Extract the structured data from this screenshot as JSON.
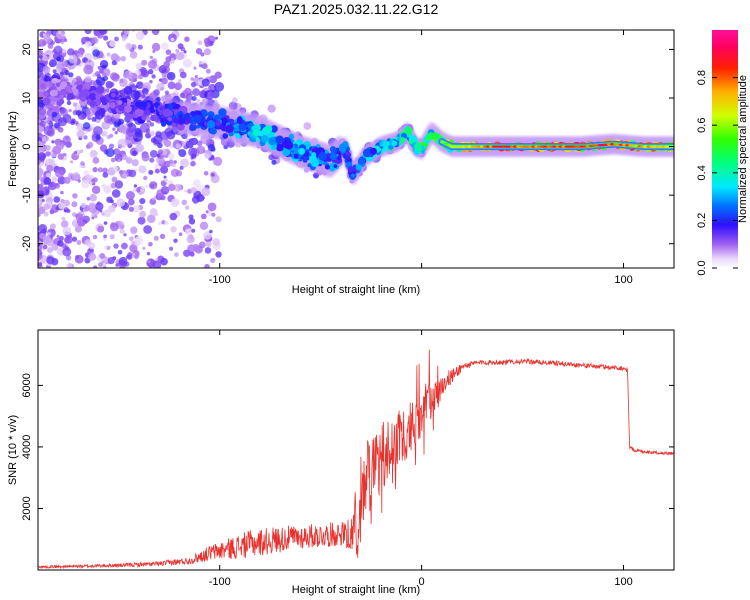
{
  "figure_title": "PAZ1.2025.032.11.22.G12",
  "chart_data": [
    {
      "type": "heatmap",
      "xlabel": "Height of straight line (km)",
      "ylabel": "Frequency (Hz)",
      "xlim": [
        -190,
        125
      ],
      "ylim": [
        -25,
        24
      ],
      "xticks": [
        -100,
        0,
        100
      ],
      "xtick_labels": [
        "-100",
        "",
        "100"
      ],
      "yticks": [
        -20,
        -10,
        0,
        10,
        20
      ],
      "ytick_labels": [
        "-20",
        "-10",
        "0",
        "10",
        "20"
      ],
      "colorbar": {
        "label": "Normalized spectral amplitude",
        "range": [
          0,
          1
        ],
        "ticks": [
          0.0,
          0.2,
          0.4,
          0.6,
          0.8
        ],
        "tick_labels": [
          "0.0",
          "0.2",
          "0.4",
          "0.6",
          "0.8"
        ],
        "colormap": "rainbow (magenta-purple-blue-cyan-green-yellow-red-pink)"
      },
      "ridge": {
        "x": [
          -190,
          -150,
          -120,
          -100,
          -80,
          -60,
          -45,
          -38,
          -34,
          -28,
          -20,
          -12,
          -7,
          -3,
          0,
          5,
          10,
          15,
          20,
          40,
          60,
          80,
          95,
          110,
          125
        ],
        "y": [
          12,
          9,
          6,
          5,
          3,
          -1,
          -3,
          0,
          -6,
          -2,
          0,
          1,
          3,
          0,
          -0.5,
          3,
          1,
          0,
          0,
          0,
          0,
          0,
          0.5,
          0,
          0
        ],
        "amplitude": [
          0.1,
          0.15,
          0.2,
          0.25,
          0.35,
          0.3,
          0.3,
          0.25,
          0.25,
          0.3,
          0.35,
          0.4,
          0.4,
          0.45,
          0.45,
          0.5,
          0.55,
          0.6,
          0.7,
          0.9,
          0.85,
          0.85,
          0.9,
          0.75,
          0.7
        ]
      }
    },
    {
      "type": "line",
      "xlabel": "Height of straight line (km)",
      "ylabel": "SNR (10 * v/v)",
      "xlim": [
        -190,
        125
      ],
      "ylim": [
        0,
        7800
      ],
      "xticks": [
        -100,
        0,
        100
      ],
      "xtick_labels": [
        "-100",
        "0",
        "100"
      ],
      "yticks": [
        2000,
        4000,
        6000
      ],
      "ytick_labels": [
        "2000",
        "4000",
        "6000"
      ],
      "series": [
        {
          "color": "#e8322e",
          "x": [
            -190,
            -170,
            -150,
            -130,
            -115,
            -105,
            -95,
            -85,
            -75,
            -65,
            -55,
            -45,
            -38,
            -33,
            -30,
            -27,
            -24,
            -20,
            -15,
            -10,
            -5,
            0,
            5,
            10,
            15,
            20,
            25,
            30,
            40,
            50,
            60,
            70,
            80,
            90,
            95,
            100,
            102,
            103,
            105,
            110,
            120,
            125
          ],
          "y": [
            100,
            120,
            150,
            200,
            300,
            550,
            700,
            850,
            950,
            1050,
            1100,
            1150,
            1200,
            1400,
            2500,
            2800,
            3000,
            3400,
            4000,
            4400,
            4700,
            5100,
            5600,
            6000,
            6300,
            6600,
            6700,
            6750,
            6750,
            6780,
            6750,
            6700,
            6650,
            6600,
            6580,
            6550,
            6500,
            4000,
            3900,
            3850,
            3800,
            3780
          ],
          "noise": [
            40,
            50,
            60,
            80,
            120,
            250,
            350,
            450,
            450,
            400,
            400,
            400,
            400,
            1200,
            1500,
            1500,
            1300,
            1300,
            1300,
            1000,
            900,
            800,
            700,
            400,
            250,
            150,
            90,
            80,
            80,
            80,
            80,
            80,
            80,
            80,
            80,
            80,
            80,
            80,
            60,
            50,
            50,
            50
          ]
        }
      ]
    }
  ]
}
